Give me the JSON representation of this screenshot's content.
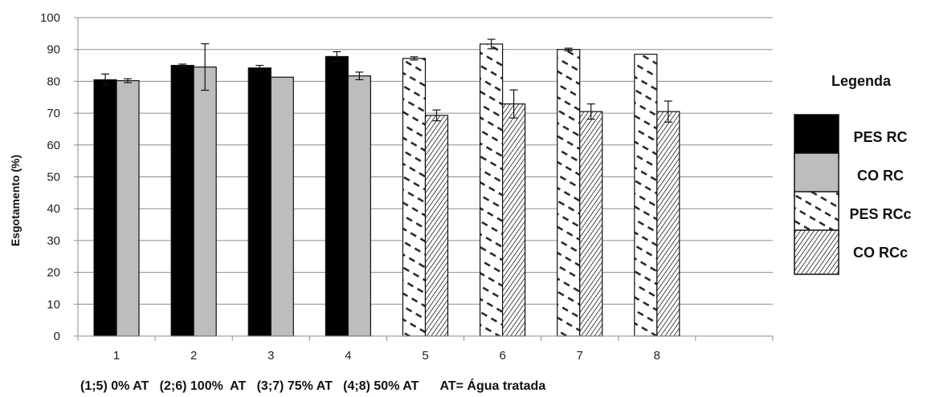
{
  "chart_data": {
    "type": "bar",
    "title": "",
    "ylabel": "Esgotamento (%)",
    "xlabel": "",
    "ylim": [
      0,
      100
    ],
    "yticks": [
      "0",
      "10",
      "20",
      "30",
      "40",
      "50",
      "60",
      "70",
      "80",
      "90",
      "100"
    ],
    "categories": [
      "1",
      "2",
      "3",
      "4",
      "5",
      "6",
      "7",
      "8"
    ],
    "grid": true,
    "legend_position": "right",
    "bars": [
      {
        "category": "1",
        "series": "PES RC",
        "value": 80.5,
        "error": 1.8
      },
      {
        "category": "1",
        "series": "CO RC",
        "value": 80.2,
        "error": 0.6
      },
      {
        "category": "2",
        "series": "PES RC",
        "value": 85.0,
        "error": 0.4
      },
      {
        "category": "2",
        "series": "CO RC",
        "value": 84.5,
        "error": 7.3
      },
      {
        "category": "3",
        "series": "PES RC",
        "value": 84.2,
        "error": 0.8
      },
      {
        "category": "3",
        "series": "CO RC",
        "value": 81.3,
        "error": 0.0
      },
      {
        "category": "4",
        "series": "PES RC",
        "value": 87.8,
        "error": 1.5
      },
      {
        "category": "4",
        "series": "CO RC",
        "value": 81.7,
        "error": 1.2
      },
      {
        "category": "5",
        "series": "PES RCc",
        "value": 87.2,
        "error": 0.5
      },
      {
        "category": "5",
        "series": "CO RCc",
        "value": 69.3,
        "error": 1.7
      },
      {
        "category": "6",
        "series": "PES RCc",
        "value": 91.7,
        "error": 1.5
      },
      {
        "category": "6",
        "series": "CO RCc",
        "value": 72.9,
        "error": 4.4
      },
      {
        "category": "7",
        "series": "PES RCc",
        "value": 90.0,
        "error": 0.4
      },
      {
        "category": "7",
        "series": "CO RCc",
        "value": 70.5,
        "error": 2.4
      },
      {
        "category": "8",
        "series": "PES RCc",
        "value": 88.5,
        "error": 0.0
      },
      {
        "category": "8",
        "series": "CO RCc",
        "value": 70.5,
        "error": 3.3
      }
    ],
    "legend": {
      "title": "Legenda",
      "entries": [
        {
          "name": "PES RC",
          "style": "solid",
          "color": "#000000"
        },
        {
          "name": "CO RC",
          "style": "solid",
          "color": "#bdbdbd"
        },
        {
          "name": "PES RCc",
          "style": "dashed-diagonal",
          "color": "#222222"
        },
        {
          "name": "CO RCc",
          "style": "dense-diagonal",
          "color": "#333333"
        }
      ]
    },
    "footnote": "(1;5) 0% AT   (2;6) 100%  AT   (3;7) 75% AT   (4;8) 50% AT      AT= Água tratada"
  }
}
